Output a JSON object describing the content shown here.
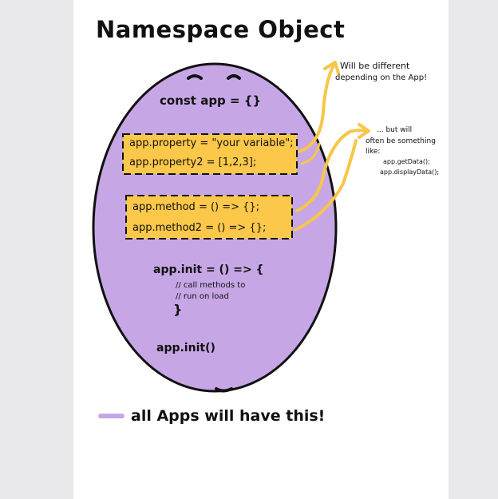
{
  "title": "Namespace Object",
  "code": {
    "declaration": "const app = {}",
    "property1": "app.property = \"your variable\";",
    "property2": "app.property2 = [1,2,3];",
    "method1": "app.method = () => {};",
    "method2": "app.method2 = () => {};",
    "init_open": "app.init = () => {",
    "init_comment1": "// call methods to",
    "init_comment2": "// run on load",
    "init_close": "}",
    "init_call": "app.init()"
  },
  "notes": {
    "properties_line1": "Will be different",
    "properties_line2": "depending on the App!",
    "methods_line1": "... but will",
    "methods_line2": "often be something",
    "methods_line3": "like:",
    "methods_line4": "app.getData();",
    "methods_line5": "app.displayData();"
  },
  "legend": {
    "text": "all Apps will have this!"
  },
  "colors": {
    "egg_fill": "#c7a6e6",
    "highlight": "#fbc84a",
    "arrow": "#f7c64a",
    "legend_swatch": "#c7a6e6",
    "ink": "#111111"
  }
}
